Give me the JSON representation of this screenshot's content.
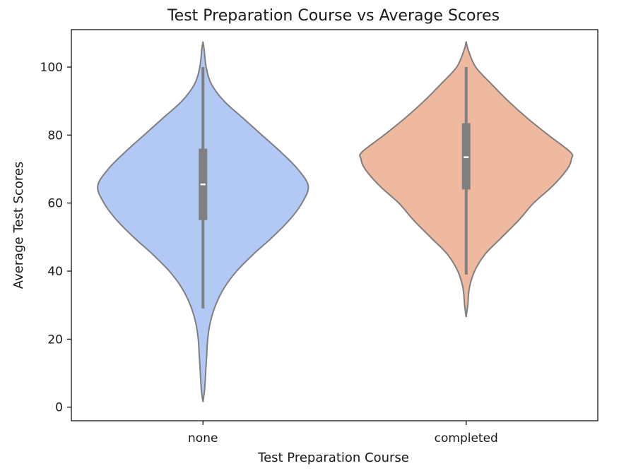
{
  "chart_data": {
    "type": "violin",
    "title": "Test Preparation Course vs Average Scores",
    "xlabel": "Test Preparation Course",
    "ylabel": "Average Test Scores",
    "ylim": [
      -4,
      111
    ],
    "yticks": [
      0,
      20,
      40,
      60,
      80,
      100
    ],
    "categories": [
      "none",
      "completed"
    ],
    "grid": false,
    "colors": {
      "none": "#b1c9f4",
      "completed": "#eeb99f",
      "edge": "#7f7f7f",
      "box": "#808080",
      "median": "#ffffff"
    },
    "violins": [
      {
        "category": "none",
        "box": {
          "whisker_low": 29,
          "q1": 55,
          "median": 65.5,
          "q3": 76,
          "whisker_high": 100
        },
        "profile": [
          [
            1.5,
            0.0
          ],
          [
            5,
            0.015
          ],
          [
            10,
            0.025
          ],
          [
            15,
            0.035
          ],
          [
            20,
            0.045
          ],
          [
            25,
            0.07
          ],
          [
            30,
            0.12
          ],
          [
            35,
            0.2
          ],
          [
            40,
            0.32
          ],
          [
            45,
            0.48
          ],
          [
            50,
            0.66
          ],
          [
            55,
            0.82
          ],
          [
            60,
            0.94
          ],
          [
            65,
            1.0
          ],
          [
            70,
            0.9
          ],
          [
            75,
            0.74
          ],
          [
            80,
            0.56
          ],
          [
            85,
            0.38
          ],
          [
            90,
            0.2
          ],
          [
            95,
            0.08
          ],
          [
            100,
            0.03
          ],
          [
            105,
            0.012
          ],
          [
            107.5,
            0.0
          ]
        ]
      },
      {
        "category": "completed",
        "box": {
          "whisker_low": 39,
          "q1": 64,
          "median": 73.5,
          "q3": 83.5,
          "whisker_high": 100
        },
        "profile": [
          [
            26.5,
            0.0
          ],
          [
            30,
            0.015
          ],
          [
            35,
            0.03
          ],
          [
            40,
            0.08
          ],
          [
            45,
            0.18
          ],
          [
            50,
            0.34
          ],
          [
            55,
            0.5
          ],
          [
            60,
            0.64
          ],
          [
            65,
            0.82
          ],
          [
            70,
            0.96
          ],
          [
            73,
            1.0
          ],
          [
            75,
            0.99
          ],
          [
            80,
            0.78
          ],
          [
            85,
            0.58
          ],
          [
            90,
            0.4
          ],
          [
            95,
            0.24
          ],
          [
            100,
            0.09
          ],
          [
            105,
            0.02
          ],
          [
            107.5,
            0.0
          ]
        ]
      }
    ]
  }
}
